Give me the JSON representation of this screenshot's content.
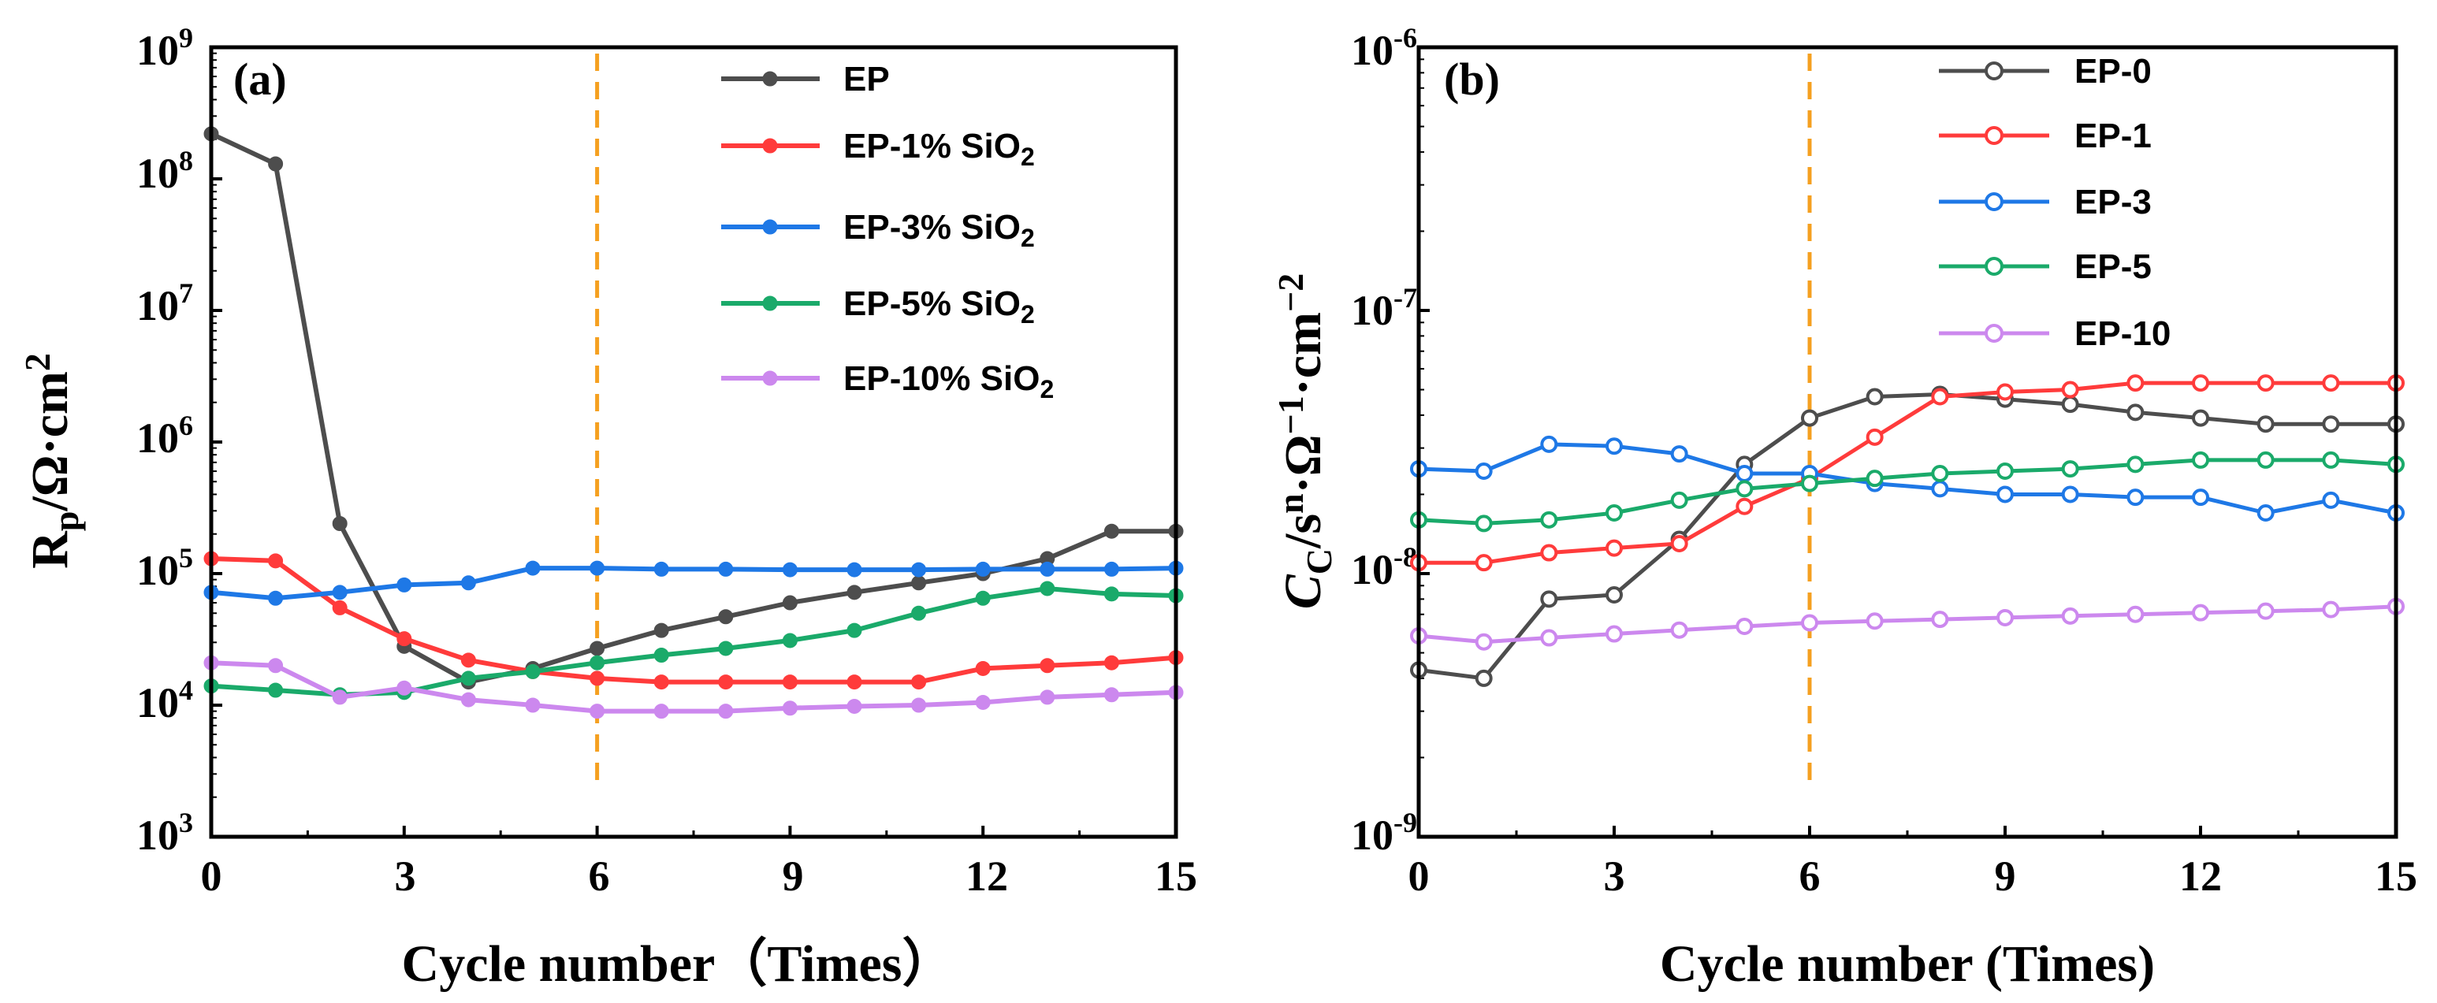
{
  "chart_data": [
    {
      "type": "line",
      "panel_label": "(a)",
      "xlabel": "Cycle number（Times）",
      "ylabel": {
        "base": "R",
        "sub": "p",
        "mid": "/Ω·cm",
        "sup": "2"
      },
      "x_ticks": [
        0,
        3,
        6,
        9,
        12,
        15
      ],
      "xlim": [
        0,
        15
      ],
      "y_scale": "log",
      "ylim": [
        1000,
        1000000000
      ],
      "y_ticks": [
        {
          "value": 1000,
          "base": "10",
          "exp": "3"
        },
        {
          "value": 10000,
          "base": "10",
          "exp": "4"
        },
        {
          "value": 100000,
          "base": "10",
          "exp": "5"
        },
        {
          "value": 1000000,
          "base": "10",
          "exp": "6"
        },
        {
          "value": 10000000,
          "base": "10",
          "exp": "7"
        },
        {
          "value": 100000000,
          "base": "10",
          "exp": "8"
        },
        {
          "value": 1000000000,
          "base": "10",
          "exp": "9"
        }
      ],
      "vline_x": 6,
      "marker": "filled",
      "legend_position": "top-right",
      "x": [
        0,
        1,
        2,
        3,
        4,
        5,
        6,
        7,
        8,
        9,
        10,
        11,
        12,
        13,
        14,
        15
      ],
      "series": [
        {
          "name": "EP",
          "legend_main": "EP",
          "legend_sub": "",
          "color": "#4d4d4d",
          "values": [
            220000000,
            130000000,
            240000,
            28000,
            15000,
            19000,
            27000,
            37000,
            47000,
            60000,
            72000,
            85000,
            100000,
            130000,
            210000,
            210000
          ]
        },
        {
          "name": "EP-1% SiO2",
          "legend_main": "EP-1% SiO",
          "legend_sub": "2",
          "color": "#ff3b3b",
          "values": [
            130000,
            125000,
            55000,
            32000,
            22000,
            18000,
            16000,
            15000,
            15000,
            15000,
            15000,
            15000,
            19000,
            20000,
            21000,
            23000
          ]
        },
        {
          "name": "EP-3% SiO2",
          "legend_main": "EP-3% SiO",
          "legend_sub": "2",
          "color": "#1e78e6",
          "values": [
            72000,
            65000,
            72000,
            82000,
            85000,
            110000,
            110000,
            108000,
            108000,
            107000,
            107000,
            107000,
            108000,
            108000,
            108000,
            110000
          ]
        },
        {
          "name": "EP-5% SiO2",
          "legend_main": "EP-5% SiO",
          "legend_sub": "2",
          "color": "#1aaa6a",
          "values": [
            14000,
            13000,
            12000,
            12500,
            16000,
            18000,
            21000,
            24000,
            27000,
            31000,
            37000,
            50000,
            65000,
            77000,
            70000,
            68000
          ]
        },
        {
          "name": "EP-10% SiO2",
          "legend_main": "EP-10% SiO",
          "legend_sub": "2",
          "color": "#cc88ee",
          "values": [
            21000,
            20000,
            11500,
            13500,
            11000,
            10000,
            9000,
            9000,
            9000,
            9500,
            9800,
            10000,
            10500,
            11500,
            12000,
            12500
          ]
        }
      ]
    },
    {
      "type": "line",
      "panel_label": "(b)",
      "xlabel": "Cycle number (Times)",
      "ylabel": {
        "base": "C",
        "sub": "C",
        "mid1": "/s",
        "sup1": "n",
        "mid2": "·Ω",
        "sup2": "−1",
        "mid3": "·cm",
        "sup3": "−2"
      },
      "x_ticks": [
        0,
        3,
        6,
        9,
        12,
        15
      ],
      "xlim": [
        0,
        15
      ],
      "y_scale": "log",
      "ylim": [
        1e-09,
        1e-06
      ],
      "y_ticks": [
        {
          "value": 1e-09,
          "base": "10",
          "exp": "-9"
        },
        {
          "value": 1e-08,
          "base": "10",
          "exp": "-8"
        },
        {
          "value": 1e-07,
          "base": "10",
          "exp": "-7"
        },
        {
          "value": 1e-06,
          "base": "10",
          "exp": "-6"
        }
      ],
      "vline_x": 6,
      "marker": "open",
      "legend_position": "top-right",
      "x": [
        0,
        1,
        2,
        3,
        4,
        5,
        6,
        7,
        8,
        9,
        10,
        11,
        12,
        13,
        14,
        15
      ],
      "series": [
        {
          "name": "EP-0",
          "legend_main": "EP-0",
          "legend_sub": "",
          "color": "#4d4d4d",
          "values": [
            4.3e-09,
            4e-09,
            8e-09,
            8.3e-09,
            1.35e-08,
            2.6e-08,
            3.9e-08,
            4.7e-08,
            4.8e-08,
            4.6e-08,
            4.4e-08,
            4.1e-08,
            3.9e-08,
            3.7e-08,
            3.7e-08,
            3.7e-08
          ]
        },
        {
          "name": "EP-1",
          "legend_main": "EP-1",
          "legend_sub": "",
          "color": "#ff3b3b",
          "values": [
            1.1e-08,
            1.1e-08,
            1.2e-08,
            1.25e-08,
            1.3e-08,
            1.8e-08,
            2.3e-08,
            3.3e-08,
            4.7e-08,
            4.9e-08,
            5e-08,
            5.3e-08,
            5.3e-08,
            5.3e-08,
            5.3e-08,
            5.3e-08
          ]
        },
        {
          "name": "EP-3",
          "legend_main": "EP-3",
          "legend_sub": "",
          "color": "#1e78e6",
          "values": [
            2.5e-08,
            2.45e-08,
            3.1e-08,
            3.05e-08,
            2.85e-08,
            2.4e-08,
            2.4e-08,
            2.2e-08,
            2.1e-08,
            2e-08,
            2e-08,
            1.95e-08,
            1.95e-08,
            1.7e-08,
            1.9e-08,
            1.7e-08
          ]
        },
        {
          "name": "EP-5",
          "legend_main": "EP-5",
          "legend_sub": "",
          "color": "#1aaa6a",
          "values": [
            1.6e-08,
            1.55e-08,
            1.6e-08,
            1.7e-08,
            1.9e-08,
            2.1e-08,
            2.2e-08,
            2.3e-08,
            2.4e-08,
            2.45e-08,
            2.5e-08,
            2.6e-08,
            2.7e-08,
            2.7e-08,
            2.7e-08,
            2.6e-08
          ]
        },
        {
          "name": "EP-10",
          "legend_main": "EP-10",
          "legend_sub": "",
          "color": "#cc88ee",
          "values": [
            5.8e-09,
            5.5e-09,
            5.7e-09,
            5.9e-09,
            6.1e-09,
            6.3e-09,
            6.5e-09,
            6.6e-09,
            6.7e-09,
            6.8e-09,
            6.9e-09,
            7e-09,
            7.1e-09,
            7.2e-09,
            7.3e-09,
            7.5e-09
          ]
        }
      ]
    }
  ]
}
